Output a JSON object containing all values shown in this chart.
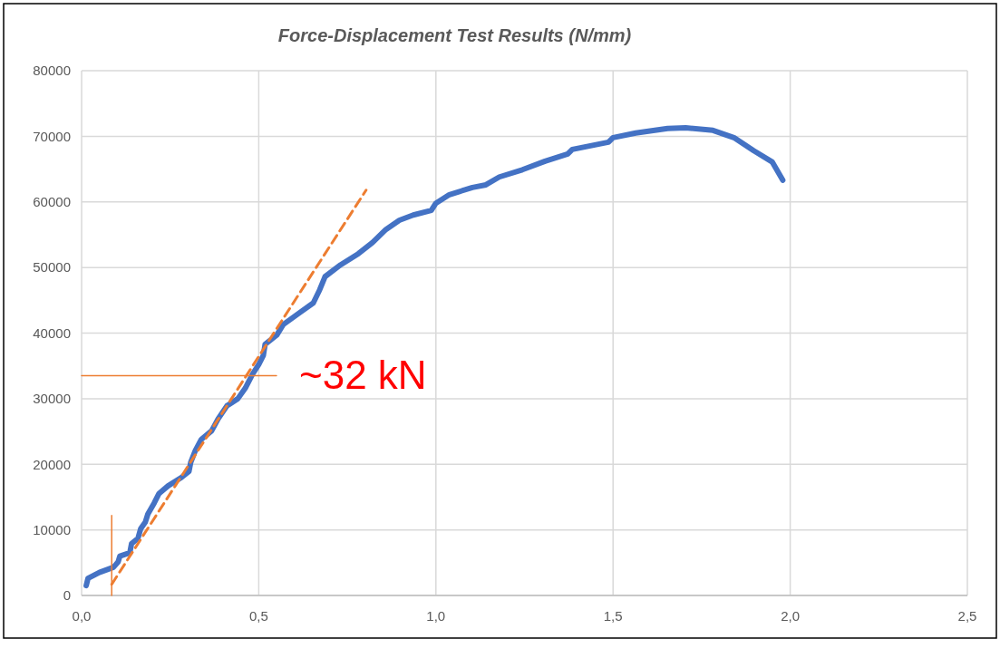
{
  "chart_data": {
    "type": "line",
    "title": "Force-Displacement Test Results (N/mm)",
    "xlim": [
      0,
      2.5
    ],
    "xticks": [
      {
        "value": 0,
        "label": "0,0"
      },
      {
        "value": 0.5,
        "label": "0,5"
      },
      {
        "value": 1,
        "label": "1,0"
      },
      {
        "value": 1.5,
        "label": "1,5"
      },
      {
        "value": 2,
        "label": "2,0"
      },
      {
        "value": 2.5,
        "label": "2,5"
      }
    ],
    "ylim": [
      0,
      80000
    ],
    "yticks": [
      0,
      10000,
      20000,
      30000,
      40000,
      50000,
      60000,
      70000,
      80000
    ],
    "grid": true,
    "series": [
      {
        "color": "#4472c4",
        "x": [
          0.013,
          0.018,
          0.05,
          0.09,
          0.103,
          0.108,
          0.136,
          0.141,
          0.159,
          0.167,
          0.18,
          0.187,
          0.205,
          0.218,
          0.244,
          0.282,
          0.303,
          0.308,
          0.321,
          0.338,
          0.367,
          0.385,
          0.41,
          0.441,
          0.462,
          0.482,
          0.5,
          0.513,
          0.518,
          0.551,
          0.569,
          0.615,
          0.654,
          0.672,
          0.687,
          0.731,
          0.781,
          0.821,
          0.859,
          0.897,
          0.936,
          0.987,
          1.0,
          1.038,
          1.103,
          1.141,
          1.179,
          1.244,
          1.308,
          1.372,
          1.385,
          1.487,
          1.5,
          1.564,
          1.654,
          1.705,
          1.782,
          1.841,
          1.897,
          1.949,
          1.979
        ],
        "values": [
          1500,
          2600,
          3500,
          4300,
          5100,
          6000,
          6500,
          7900,
          8700,
          10200,
          11200,
          12400,
          14100,
          15500,
          16700,
          18000,
          18900,
          20300,
          22100,
          23800,
          25100,
          26900,
          28900,
          30000,
          31600,
          33700,
          35200,
          36600,
          38300,
          39700,
          41300,
          43100,
          44600,
          46600,
          48600,
          50400,
          52100,
          53800,
          55800,
          57200,
          58000,
          58700,
          59800,
          61100,
          62200,
          62600,
          63800,
          64900,
          66200,
          67300,
          68000,
          69100,
          69800,
          70500,
          71200,
          71300,
          70900,
          69800,
          67800,
          66100,
          63300
        ]
      },
      {
        "color": "#ed7d31",
        "line_style": "dashed",
        "x": [
          0.085,
          0.803
        ],
        "values": [
          1700,
          61800
        ]
      },
      {
        "color": "#ed7d31",
        "x": [
          0.085,
          0.085
        ],
        "values": [
          0,
          12200
        ]
      },
      {
        "color": "#ed7d31",
        "x": [
          0,
          0.55
        ],
        "values": [
          33500,
          33500
        ]
      }
    ],
    "annotations": [
      "~32 kN"
    ]
  }
}
